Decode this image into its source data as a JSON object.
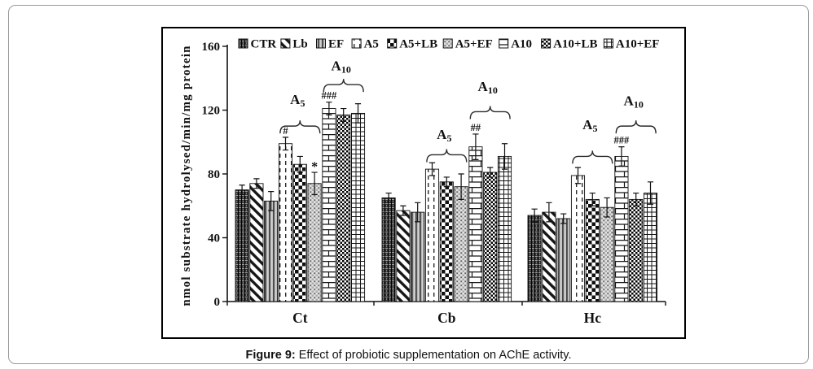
{
  "figure": {
    "caption_label": "Figure 9:",
    "caption_text": " Effect of probiotic supplementation on AChE activity."
  },
  "colors": {
    "ink": "#111111",
    "box_border": "#000000",
    "card_border": "#9a9a9a",
    "background": "#ffffff"
  },
  "chart_data": {
    "type": "bar",
    "title": "",
    "xlabel": "",
    "ylabel": "nmol substrate hydrolysed/min/mg protein",
    "ylim": [
      0,
      160
    ],
    "yticks": [
      0,
      40,
      80,
      120,
      160
    ],
    "grid": false,
    "legend_position": "top",
    "categories": [
      "Ct",
      "Cb",
      "Hc"
    ],
    "series": [
      {
        "name": "CTR",
        "pattern": "dark-weave",
        "values": [
          70,
          65,
          54
        ],
        "errors": [
          3,
          3,
          4
        ]
      },
      {
        "name": "Lb",
        "pattern": "diagonal-stripes",
        "values": [
          74,
          57,
          56
        ],
        "errors": [
          3,
          3,
          6
        ]
      },
      {
        "name": "EF",
        "pattern": "vertical-bars",
        "values": [
          63,
          56,
          52
        ],
        "errors": [
          6,
          6,
          3
        ]
      },
      {
        "name": "A5",
        "pattern": "dashed-vertical",
        "values": [
          99,
          83,
          79
        ],
        "errors": [
          4,
          4,
          5
        ]
      },
      {
        "name": "A5+LB",
        "pattern": "checkerboard",
        "values": [
          86,
          75,
          64
        ],
        "errors": [
          5,
          3,
          4
        ]
      },
      {
        "name": "A5+EF",
        "pattern": "gray-checker-dots",
        "values": [
          74,
          72,
          59
        ],
        "errors": [
          7,
          8,
          6
        ]
      },
      {
        "name": "A10",
        "pattern": "brick",
        "values": [
          121,
          97,
          91
        ],
        "errors": [
          4,
          8,
          6
        ]
      },
      {
        "name": "A10+LB",
        "pattern": "small-checkerboard",
        "values": [
          117,
          81,
          64
        ],
        "errors": [
          4,
          3,
          4
        ]
      },
      {
        "name": "A10+EF",
        "pattern": "grid",
        "values": [
          118,
          91,
          68
        ],
        "errors": [
          6,
          8,
          7
        ]
      }
    ],
    "annotations": [
      {
        "category": "Ct",
        "series": "A5",
        "text": "#"
      },
      {
        "category": "Ct",
        "series": "A5+EF",
        "text": "*"
      },
      {
        "category": "Ct",
        "series": "A10",
        "text": "###"
      },
      {
        "category": "Cb",
        "series": "A10",
        "text": "##"
      },
      {
        "category": "Hc",
        "series": "A10",
        "text": "###"
      }
    ],
    "brackets": [
      {
        "category": "Ct",
        "label_base": "A",
        "label_sub": "5",
        "from_series": "A5",
        "to_series": "A5+EF",
        "brace_value": 110,
        "label_value": 127
      },
      {
        "category": "Ct",
        "label_base": "A",
        "label_sub": "10",
        "from_series": "A10",
        "to_series": "A10+EF",
        "brace_value": 136,
        "label_value": 148
      },
      {
        "category": "Cb",
        "label_base": "A",
        "label_sub": "5",
        "from_series": "A5",
        "to_series": "A5+EF",
        "brace_value": 92,
        "label_value": 105
      },
      {
        "category": "Cb",
        "label_base": "A",
        "label_sub": "10",
        "from_series": "A10",
        "to_series": "A10+EF",
        "brace_value": 119,
        "label_value": 135
      },
      {
        "category": "Hc",
        "label_base": "A",
        "label_sub": "5",
        "from_series": "A5",
        "to_series": "A5+EF",
        "brace_value": 91,
        "label_value": 111
      },
      {
        "category": "Hc",
        "label_base": "A",
        "label_sub": "10",
        "from_series": "A10",
        "to_series": "A10+EF",
        "brace_value": 110,
        "label_value": 126
      }
    ]
  }
}
